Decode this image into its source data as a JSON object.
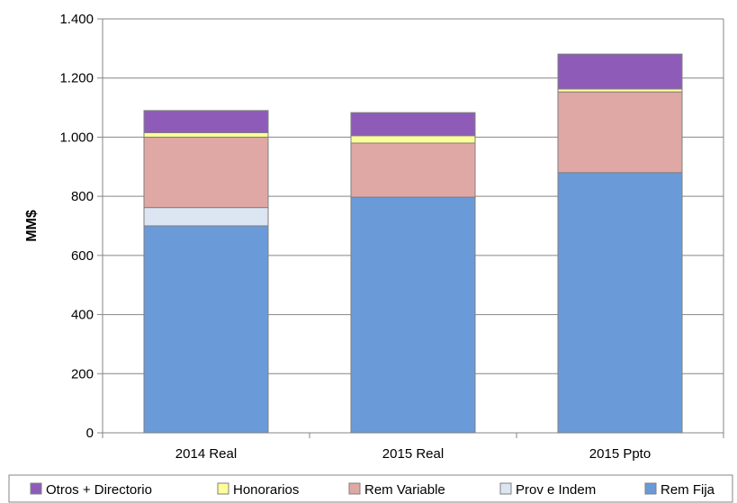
{
  "chart_data": {
    "type": "bar",
    "stacked": true,
    "title": "",
    "xlabel": "",
    "ylabel": "MM$",
    "ylim": [
      0,
      1400
    ],
    "yticks": [
      0,
      200,
      400,
      600,
      800,
      1000,
      1200,
      1400
    ],
    "ytick_labels": [
      "0",
      "200",
      "400",
      "600",
      "800",
      "1.000",
      "1.200",
      "1.400"
    ],
    "grid": true,
    "legend_position": "bottom",
    "categories": [
      "2014 Real",
      "2015 Real",
      "2015 Ppto"
    ],
    "series": [
      {
        "name": "Rem Fija",
        "color": "#6a9bd8",
        "values": [
          700,
          797,
          880
        ]
      },
      {
        "name": "Prov e Indem",
        "color": "#dce6f2",
        "values": [
          62,
          0,
          0
        ]
      },
      {
        "name": "Rem Variable",
        "color": "#dfa8a5",
        "values": [
          238,
          183,
          273
        ]
      },
      {
        "name": "Honorarios",
        "color": "#ffff99",
        "values": [
          15,
          25,
          10
        ]
      },
      {
        "name": "Otros + Directorio",
        "color": "#8e5cb8",
        "values": [
          75,
          78,
          118
        ]
      }
    ],
    "legend_order": [
      "Otros + Directorio",
      "Honorarios",
      "Rem Variable",
      "Prov e Indem",
      "Rem Fija"
    ]
  }
}
